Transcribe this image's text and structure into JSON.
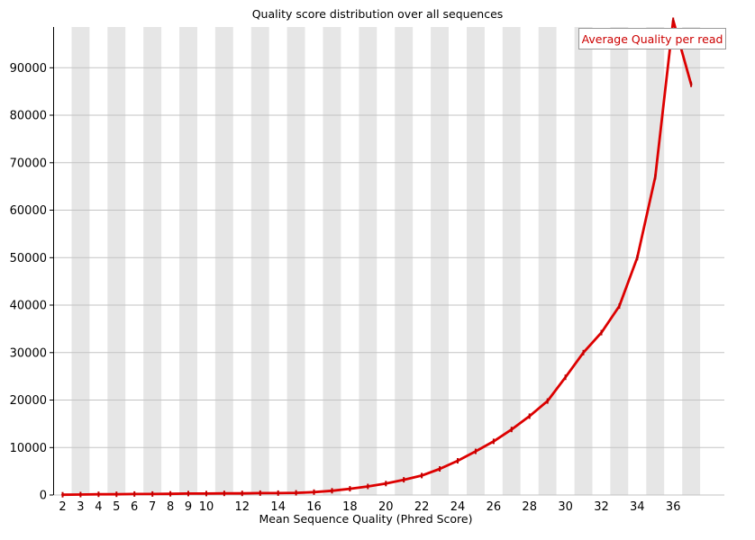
{
  "title": "Quality score distribution over all sequences",
  "legend": {
    "label": "Average Quality per read",
    "text_color": "#cc0000",
    "border_color": "#9a9a9a",
    "background": "#ffffff",
    "position": "top-right"
  },
  "colors": {
    "line": "#dd0000",
    "marker": "#c00000",
    "band": "#e6e6e6",
    "gridline": "#c3c3c3",
    "axis": "#000000",
    "text": "#000000",
    "background": "#ffffff"
  },
  "chart_data": {
    "type": "line",
    "title": "Quality score distribution over all sequences",
    "xlabel": "Mean Sequence Quality (Phred Score)",
    "ylabel": "",
    "series": [
      {
        "name": "Average Quality per read",
        "x": [
          2,
          3,
          4,
          5,
          6,
          7,
          8,
          9,
          10,
          11,
          12,
          13,
          14,
          15,
          16,
          17,
          18,
          19,
          20,
          21,
          22,
          23,
          24,
          25,
          26,
          27,
          28,
          29,
          30,
          31,
          32,
          33,
          34,
          35,
          36,
          37
        ],
        "values": [
          50,
          100,
          150,
          150,
          200,
          200,
          250,
          300,
          300,
          350,
          350,
          400,
          400,
          450,
          600,
          900,
          1300,
          1800,
          2400,
          3200,
          4100,
          5500,
          7200,
          9200,
          11300,
          13800,
          16600,
          19800,
          24800,
          30000,
          34200,
          39800,
          50000,
          67000,
          100000,
          86500
        ]
      }
    ],
    "xticks": [
      2,
      3,
      4,
      5,
      6,
      7,
      8,
      9,
      10,
      12,
      14,
      16,
      18,
      20,
      22,
      24,
      26,
      28,
      30,
      32,
      34,
      36
    ],
    "yticks": [
      0,
      10000,
      20000,
      30000,
      40000,
      50000,
      60000,
      70000,
      80000,
      90000
    ],
    "xlim": [
      1.5,
      38.9
    ],
    "ylim": [
      0,
      98600
    ],
    "grid": "horizontal",
    "background_bands": "alternating light-gray vertical stripes, one unit wide, centered on odd x values 3 to 37",
    "legend_position": "top-right"
  }
}
